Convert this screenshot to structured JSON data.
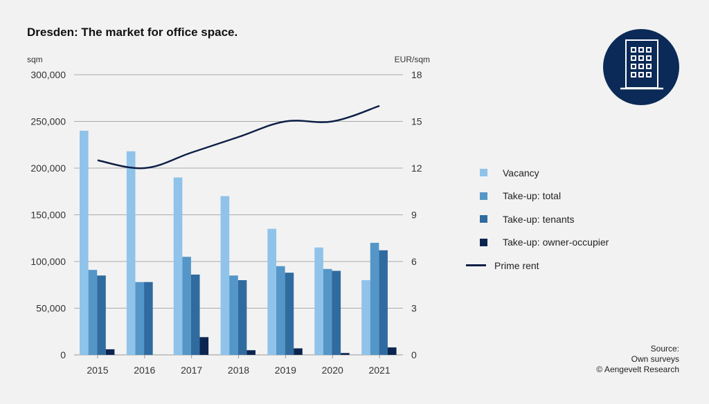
{
  "header": {
    "title": "Dresden: The market for office space."
  },
  "logo": {
    "icon": "office-building-icon"
  },
  "source": {
    "lines": [
      "Source:",
      "Own surveys",
      "© Aengevelt Research"
    ]
  },
  "chart_data": {
    "type": "bar",
    "title": "Dresden: The market for office space.",
    "categories": [
      "2015",
      "2016",
      "2017",
      "2018",
      "2019",
      "2020",
      "2021"
    ],
    "left_axis": {
      "label": "sqm",
      "ylim": [
        0,
        300000
      ],
      "ticks": [
        "0",
        "50,000",
        "100,000",
        "150,000",
        "200,000",
        "250,000",
        "300,000"
      ],
      "tick_values": [
        0,
        50000,
        100000,
        150000,
        200000,
        250000,
        300000
      ]
    },
    "right_axis": {
      "label": "EUR/sqm",
      "ylim": [
        0,
        18
      ],
      "ticks": [
        "0",
        "3",
        "6",
        "9",
        "12",
        "15",
        "18"
      ],
      "tick_values": [
        0,
        3,
        6,
        9,
        12,
        15,
        18
      ]
    },
    "grid": true,
    "legend_position": "right",
    "series": [
      {
        "name": "Vacancy",
        "type": "bar",
        "axis": "left",
        "color": "#8fc3ea",
        "values": [
          240000,
          218000,
          190000,
          170000,
          135000,
          115000,
          80000
        ]
      },
      {
        "name": "Take-up: total",
        "type": "bar",
        "axis": "left",
        "color": "#5596c8",
        "values": [
          91000,
          78000,
          105000,
          85000,
          95000,
          92000,
          120000
        ]
      },
      {
        "name": "Take-up: tenants",
        "type": "bar",
        "axis": "left",
        "color": "#2f6b9f",
        "values": [
          85000,
          78000,
          86000,
          80000,
          88000,
          90000,
          112000
        ]
      },
      {
        "name": "Take-up: owner-occupier",
        "type": "bar",
        "axis": "left",
        "color": "#0c2550",
        "values": [
          6000,
          0,
          19000,
          5000,
          7000,
          2000,
          8000
        ]
      },
      {
        "name": "Prime rent",
        "type": "line",
        "axis": "right",
        "color": "#0d1f45",
        "values": [
          12.5,
          12.0,
          13.0,
          14.0,
          15.0,
          15.0,
          16.0
        ]
      }
    ]
  }
}
